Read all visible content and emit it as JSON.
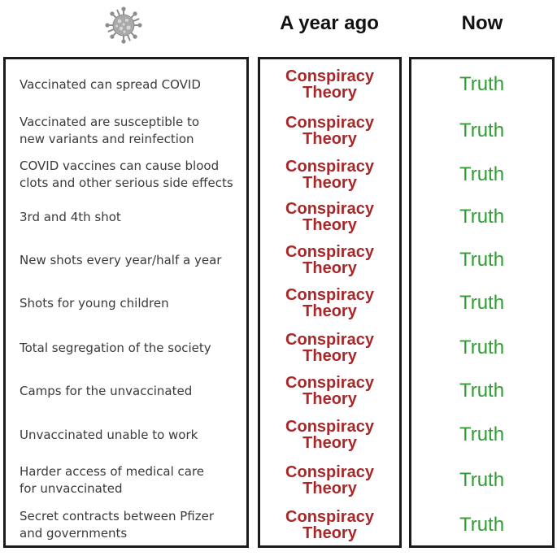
{
  "header": {
    "col_year_ago": "A year ago",
    "col_now": "Now",
    "icon": "virus-icon"
  },
  "colors": {
    "conspiracy": "#a8282a",
    "truth": "#2f9d33",
    "border": "#1b1b1b",
    "claim_text": "#3a3a3a"
  },
  "rows": [
    {
      "claim": [
        "Vaccinated can spread COVID"
      ],
      "then": [
        "Conspiracy",
        "Theory"
      ],
      "now": "Truth"
    },
    {
      "claim": [
        "Vaccinated are susceptible to",
        "new variants and reinfection"
      ],
      "then": [
        "Conspiracy",
        "Theory"
      ],
      "now": "Truth"
    },
    {
      "claim": [
        "COVID vaccines can cause blood",
        "clots and other serious side effects"
      ],
      "then": [
        "Conspiracy",
        "Theory"
      ],
      "now": "Truth"
    },
    {
      "claim": [
        "3rd and 4th shot"
      ],
      "then": [
        "Conspiracy",
        "Theory"
      ],
      "now": "Truth"
    },
    {
      "claim": [
        "New shots every year/half a year"
      ],
      "then": [
        "Conspiracy",
        "Theory"
      ],
      "now": "Truth"
    },
    {
      "claim": [
        "Shots for young children"
      ],
      "then": [
        "Conspiracy",
        "Theory"
      ],
      "now": "Truth"
    },
    {
      "claim": [
        "Total segregation of the society"
      ],
      "then": [
        "Conspiracy",
        "Theory"
      ],
      "now": "Truth"
    },
    {
      "claim": [
        "Camps for the unvaccinated"
      ],
      "then": [
        "Conspiracy",
        "Theory"
      ],
      "now": "Truth"
    },
    {
      "claim": [
        "Unvaccinated unable to work"
      ],
      "then": [
        "Conspiracy",
        "Theory"
      ],
      "now": "Truth"
    },
    {
      "claim": [
        "Harder access of medical care",
        "for unvaccinated"
      ],
      "then": [
        "Conspiracy",
        "Theory"
      ],
      "now": "Truth"
    },
    {
      "claim": [
        "Secret contracts between Pfizer",
        "and governments"
      ],
      "then": [
        "Conspiracy",
        "Theory"
      ],
      "now": "Truth"
    }
  ]
}
